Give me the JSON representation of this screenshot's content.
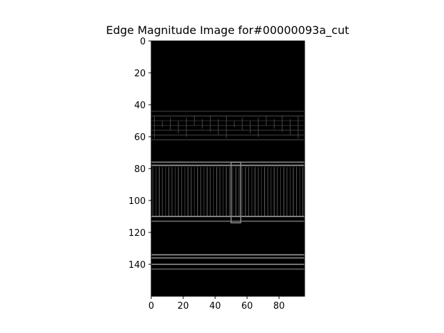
{
  "chart_data": {
    "type": "heatmap",
    "title": "Edge Magnitude Image for#00000093a_cut",
    "xlabel": "",
    "ylabel": "",
    "xlim": [
      0,
      96
    ],
    "ylim": [
      160,
      0
    ],
    "x_ticks": [
      0,
      20,
      40,
      60,
      80
    ],
    "y_ticks": [
      0,
      20,
      40,
      60,
      80,
      100,
      120,
      140
    ],
    "colormap": "gray",
    "grid": false,
    "image_features": {
      "skyline_edges": {
        "y_range": [
          44,
          62
        ],
        "intensity": 0.35
      },
      "rail_top_edges": [
        {
          "y": 76,
          "intensity": 0.45
        },
        {
          "y": 78,
          "intensity": 0.55
        }
      ],
      "railing_band": {
        "y_range": [
          79,
          110
        ],
        "vertical_bar_spacing": 2,
        "intensity": 0.4
      },
      "railing_bottom_edges": [
        {
          "y": 110,
          "intensity": 0.5
        },
        {
          "y": 113,
          "intensity": 0.35
        }
      ],
      "post": {
        "x_range": [
          50,
          56
        ],
        "y_range": [
          76,
          114
        ],
        "intensity": 0.55
      },
      "lower_lines": [
        {
          "y": 134,
          "intensity": 0.5
        },
        {
          "y": 136,
          "intensity": 0.45
        },
        {
          "y": 140,
          "intensity": 0.45
        },
        {
          "y": 143,
          "intensity": 0.3
        }
      ]
    }
  }
}
